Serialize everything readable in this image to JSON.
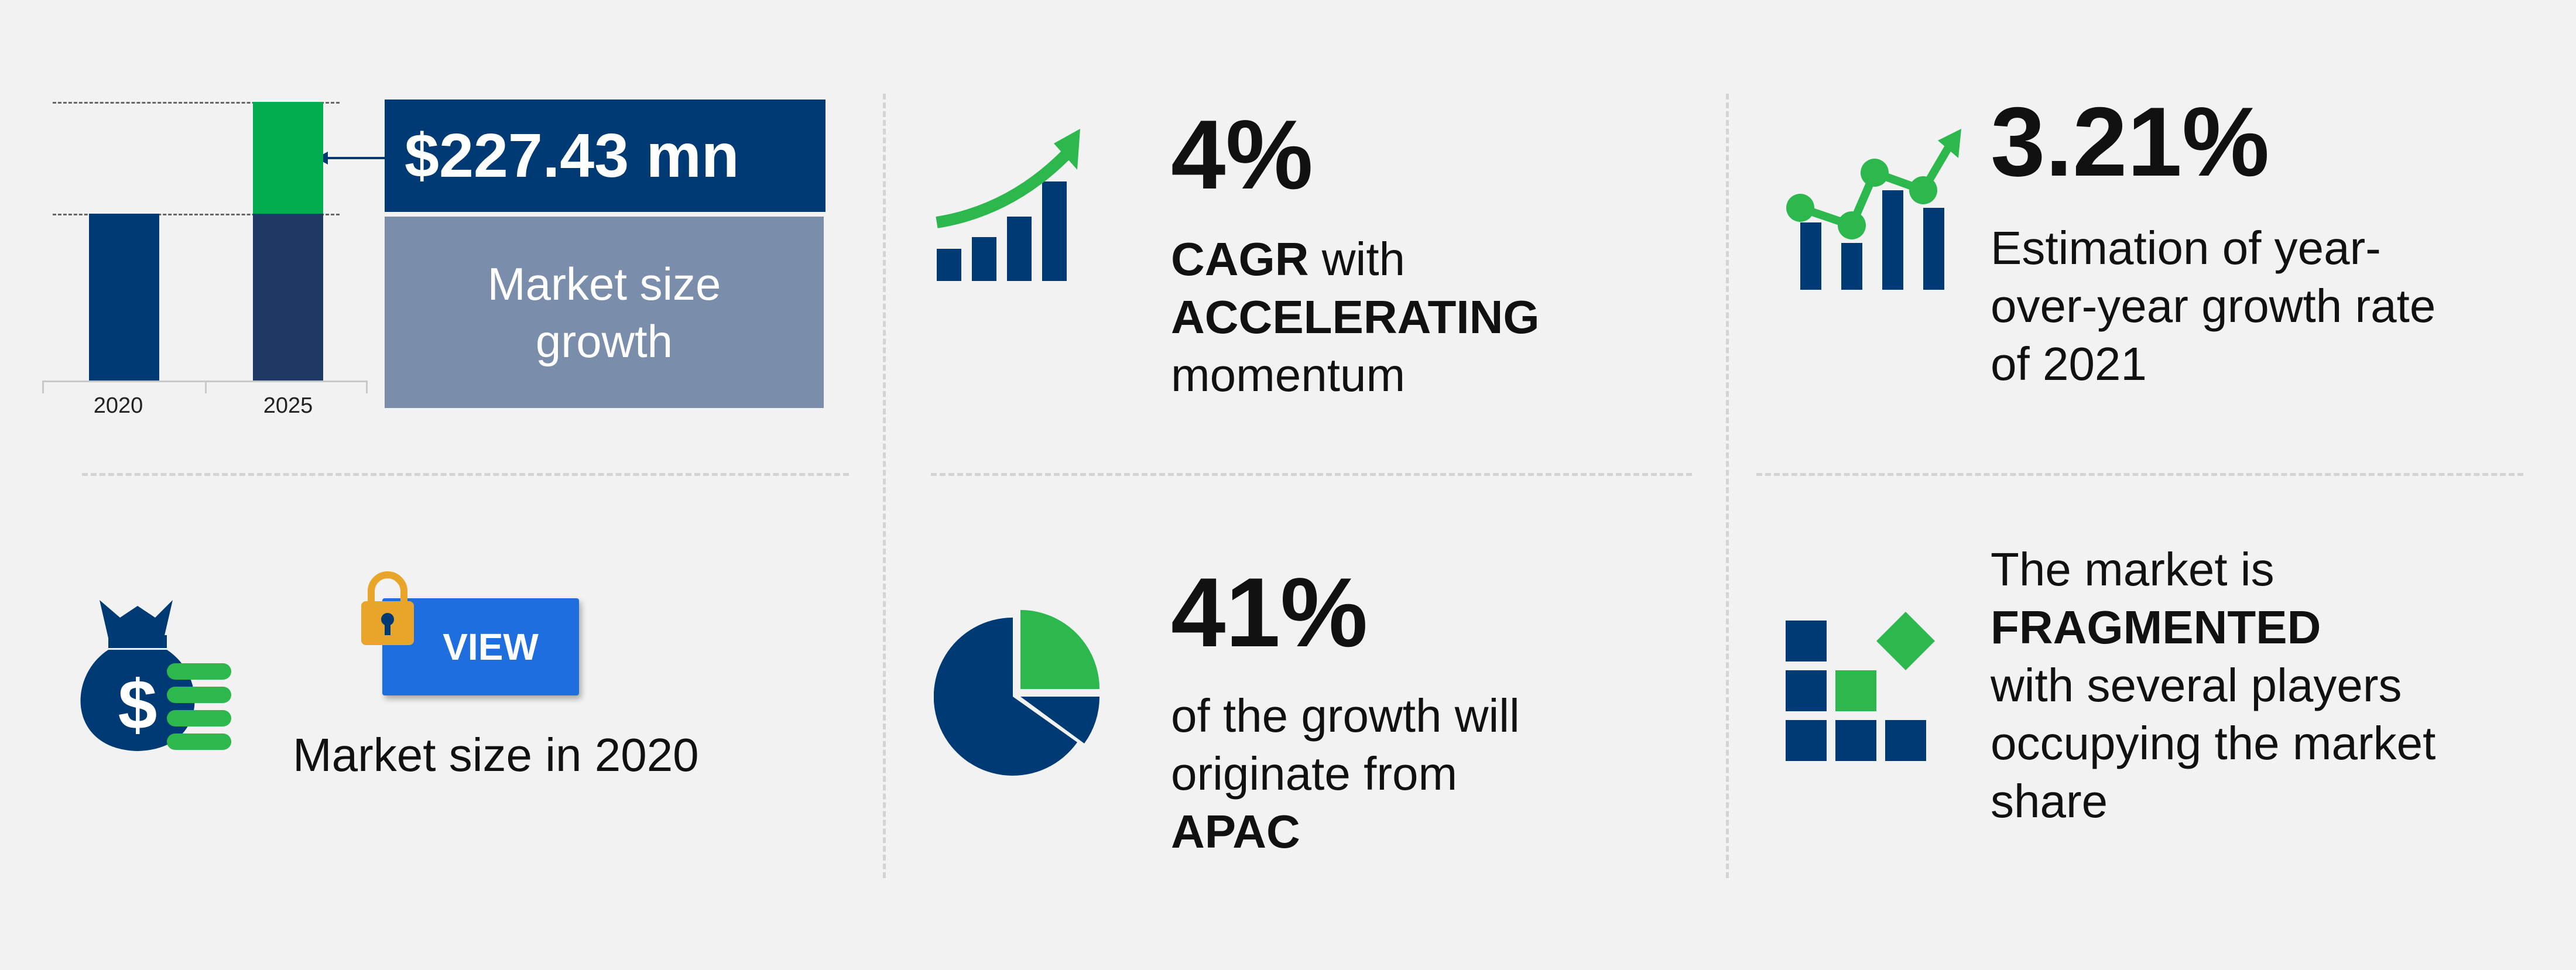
{
  "market_size": {
    "value_label": "$227.43 mn",
    "caption_line1": "Market size",
    "caption_line2": "growth"
  },
  "chart_data": {
    "type": "bar",
    "categories": [
      "2020",
      "2025"
    ],
    "series": [
      {
        "values": [
          1.0,
          1.0
        ]
      },
      {
        "values": [
          0,
          0.67
        ]
      }
    ],
    "colors": [
      "#003a75",
      "#00ad4f"
    ]
  },
  "cagr": {
    "value": "4%",
    "line1_bold": "CAGR",
    "line1_rest": " with",
    "line2_bold": "ACCELERATING",
    "line3": "momentum"
  },
  "yoy": {
    "value": "3.21%",
    "line1": "Estimation of year-",
    "line2": "over-year growth rate",
    "line3": "of 2021"
  },
  "market_2020": {
    "button_label": "VIEW",
    "caption": "Market size in 2020"
  },
  "region": {
    "value": "41%",
    "line1": "of the growth will",
    "line2": "originate from",
    "line3_bold": "APAC"
  },
  "fragmented": {
    "line1": "The market is",
    "line2_bold": "FRAGMENTED",
    "line3": "with several players",
    "line4": "occupying the market",
    "line5": "share"
  },
  "colors": {
    "navy": "#003a75",
    "green": "#2db84d",
    "blue_button": "#1f6ee0",
    "caption_box": "#7a8dab",
    "lock": "#e8a52a"
  }
}
